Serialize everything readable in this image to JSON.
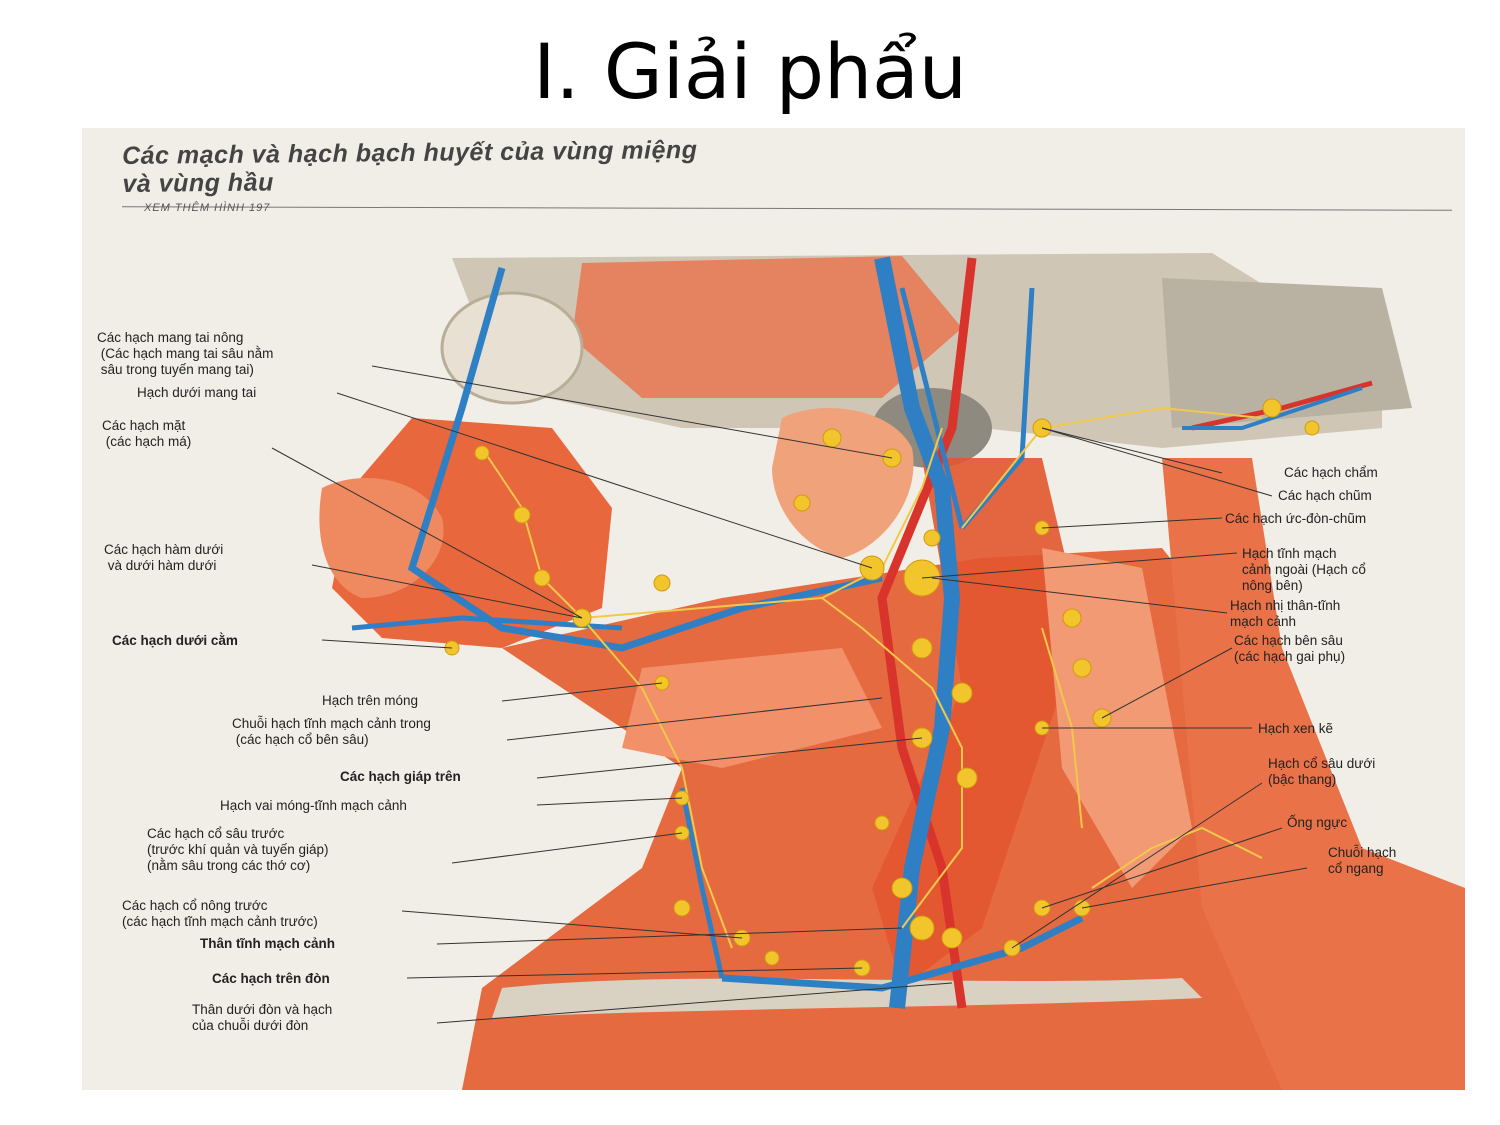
{
  "slide": {
    "title": "I. Giải phẩu"
  },
  "plate": {
    "title_line1": "Các mạch và hạch bạch huyết của vùng miệng",
    "title_line2": "và vùng hầu",
    "see_also": "XEM THÊM HÌNH 197"
  },
  "labels_left": [
    "Các hạch mang tai nông\n (Các hạch mang tai sâu nằm\n sâu trong tuyến mang tai)",
    "Hạch dưới mang tai",
    "Các hạch mặt\n (các hạch má)",
    "Các hạch hàm dưới\n và dưới hàm dưới",
    "Các hạch dưới cằm",
    "Hạch trên móng",
    "Chuỗi hạch tĩnh mạch cảnh trong\n (các hạch cổ bên sâu)",
    "Các hạch giáp trên",
    "Hạch vai móng-tĩnh mạch cảnh",
    "Các hạch cổ sâu trước\n(trước khí quản và tuyến giáp)\n(nằm sâu trong các thớ cơ)",
    "Các hạch cổ nông trước\n(các hạch tĩnh mạch cảnh trước)",
    "Thân tĩnh mạch cảnh",
    "Các hạch trên đòn",
    "Thân dưới đòn và hạch\ncủa chuỗi dưới đòn"
  ],
  "labels_right": [
    "Các hạch chẩm",
    "Các hạch chũm",
    "Các hạch ức-đòn-chũm",
    "Hạch tĩnh mạch\ncảnh ngoài (Hạch cổ\nnông bên)",
    "Hạch nhị thân-tĩnh\nmạch cảnh",
    "Các hạch bên sâu\n(các hạch gai phụ)",
    "Hạch xen kẽ",
    "Hạch cổ sâu dưới\n(bậc thang)",
    "Ống ngực",
    "Chuỗi hạch\ncổ ngang"
  ],
  "colors": {
    "muscle": "#e8673c",
    "muscle_light": "#f3a07c",
    "vein": "#2f7fc4",
    "artery": "#d9342b",
    "node": "#f3c52c",
    "bone": "#c9c4b8"
  }
}
